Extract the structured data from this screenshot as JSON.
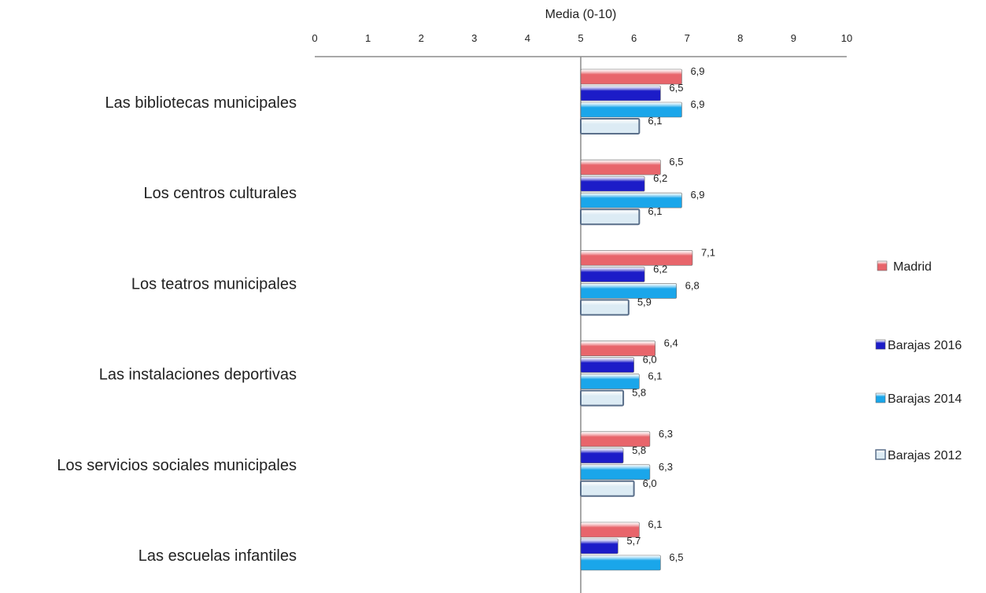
{
  "chart_data": {
    "type": "bar",
    "orientation": "horizontal",
    "title": "",
    "xlabel": "Media (0-10)",
    "ylabel": "",
    "xlim": [
      0,
      10
    ],
    "base_value": 5,
    "ticks": [
      "0",
      "1",
      "2",
      "3",
      "4",
      "5",
      "6",
      "7",
      "8",
      "9",
      "10"
    ],
    "legend_position": "right",
    "categories": [
      "Las bibliotecas municipales",
      "Los  centros culturales",
      "Los teatros municipales",
      "Las instalaciones deportivas",
      "Los servicios sociales municipales",
      "Las escuelas infantiles"
    ],
    "series": [
      {
        "name": "Madrid",
        "color": "#e8656b",
        "values": [
          6.9,
          6.5,
          7.1,
          6.4,
          6.3,
          6.1
        ],
        "labels": [
          "6,9",
          "6,5",
          "7,1",
          "6,4",
          "6,3",
          "6,1"
        ]
      },
      {
        "name": "Barajas 2016",
        "color": "#1c1cc8",
        "values": [
          6.5,
          6.2,
          6.2,
          6.0,
          5.8,
          5.7
        ],
        "labels": [
          "6,5",
          "6,2",
          "6,2",
          "6,0",
          "5,8",
          "5,7"
        ]
      },
      {
        "name": "Barajas 2014",
        "color": "#1aa6ea",
        "values": [
          6.9,
          6.9,
          6.8,
          6.1,
          6.3,
          6.5
        ],
        "labels": [
          "6,9",
          "6,9",
          "6,8",
          "6,1",
          "6,3",
          "6,5"
        ]
      },
      {
        "name": "Barajas 2012",
        "color": "#dcebf4",
        "stroke": "#5a6f8a",
        "values": [
          6.1,
          6.1,
          5.9,
          5.8,
          6.0,
          null
        ],
        "labels": [
          "6,1",
          "6,1",
          "5,9",
          "5,8",
          "6,0",
          ""
        ]
      }
    ]
  }
}
